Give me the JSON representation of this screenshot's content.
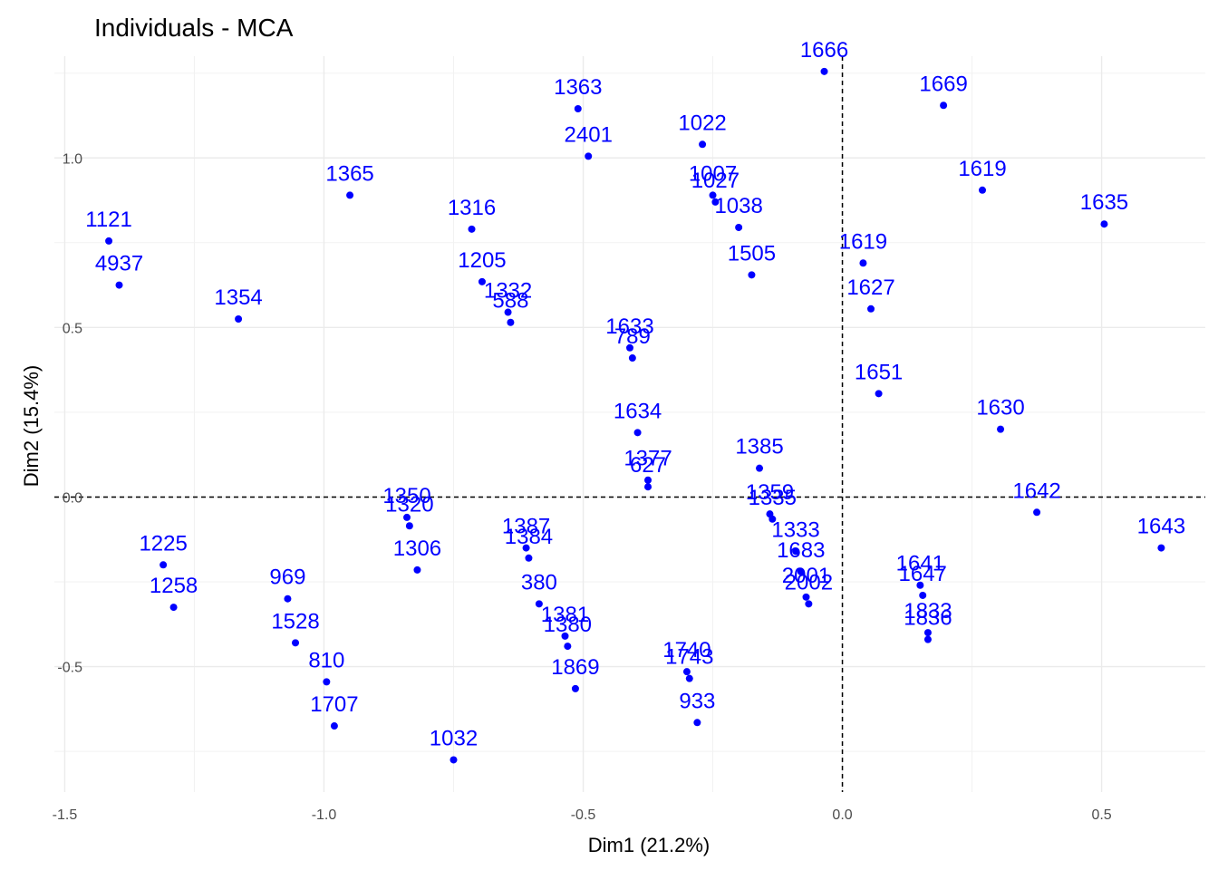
{
  "chart_data": {
    "type": "scatter",
    "title": "Individuals - MCA",
    "xlabel": "Dim1 (21.2%)",
    "ylabel": "Dim2 (15.4%)",
    "xlim": [
      -1.52,
      0.7
    ],
    "ylim": [
      -0.87,
      1.3
    ],
    "xticks": [
      -1.5,
      -1.0,
      -0.5,
      0.0,
      0.5
    ],
    "xtick_labels": [
      "-1.5",
      "-1.0",
      "-0.5",
      "0.0",
      "0.5"
    ],
    "yticks": [
      -0.5,
      0.0,
      0.5,
      1.0
    ],
    "ytick_labels": [
      "-0.5",
      "0.0",
      "0.5",
      "1.0"
    ],
    "grid": true,
    "reference_lines": {
      "x": 0,
      "y": 0,
      "style": "dashed"
    },
    "point_color": "#0000ff",
    "label_color": "#0000ff",
    "overlap_label_color": "#ff00ff",
    "points": [
      {
        "label": "1121",
        "x": -1.415,
        "y": 0.755
      },
      {
        "label": "4937",
        "x": -1.395,
        "y": 0.625
      },
      {
        "label": "1354",
        "x": -1.165,
        "y": 0.525
      },
      {
        "label": "1225",
        "x": -1.31,
        "y": -0.2
      },
      {
        "label": "1258",
        "x": -1.29,
        "y": -0.325
      },
      {
        "label": "969",
        "x": -1.07,
        "y": -0.3
      },
      {
        "label": "1528",
        "x": -1.055,
        "y": -0.43
      },
      {
        "label": "810",
        "x": -0.995,
        "y": -0.545
      },
      {
        "label": "1707",
        "x": -0.98,
        "y": -0.675
      },
      {
        "label": "1365",
        "x": -0.95,
        "y": 0.89
      },
      {
        "label": "1350",
        "x": -0.84,
        "y": -0.06
      },
      {
        "label": "1320",
        "x": -0.835,
        "y": -0.085
      },
      {
        "label": "1306",
        "x": -0.82,
        "y": -0.215
      },
      {
        "label": "1032",
        "x": -0.75,
        "y": -0.775
      },
      {
        "label": "1316",
        "x": -0.715,
        "y": 0.79
      },
      {
        "label": "1205",
        "x": -0.695,
        "y": 0.635
      },
      {
        "label": "1332",
        "x": -0.645,
        "y": 0.545
      },
      {
        "label": "588",
        "x": -0.64,
        "y": 0.515
      },
      {
        "label": "1387",
        "x": -0.61,
        "y": -0.15
      },
      {
        "label": "1384",
        "x": -0.605,
        "y": -0.18
      },
      {
        "label": "380",
        "x": -0.585,
        "y": -0.315
      },
      {
        "label": "1381",
        "x": -0.535,
        "y": -0.41
      },
      {
        "label": "1380",
        "x": -0.53,
        "y": -0.44
      },
      {
        "label": "1869",
        "x": -0.515,
        "y": -0.565
      },
      {
        "label": "1363",
        "x": -0.51,
        "y": 1.145
      },
      {
        "label": "2401",
        "x": -0.49,
        "y": 1.005
      },
      {
        "label": "1633",
        "x": -0.41,
        "y": 0.44
      },
      {
        "label": "789",
        "x": -0.405,
        "y": 0.41
      },
      {
        "label": "1634",
        "x": -0.395,
        "y": 0.19
      },
      {
        "label": "1377",
        "x": -0.375,
        "y": 0.05
      },
      {
        "label": "627",
        "x": -0.375,
        "y": 0.03
      },
      {
        "label": "1740",
        "x": -0.3,
        "y": -0.515
      },
      {
        "label": "1743",
        "x": -0.295,
        "y": -0.535
      },
      {
        "label": "933",
        "x": -0.28,
        "y": -0.665
      },
      {
        "label": "1022",
        "x": -0.27,
        "y": 1.04
      },
      {
        "label": "1007",
        "x": -0.25,
        "y": 0.89
      },
      {
        "label": "1027",
        "x": -0.245,
        "y": 0.87
      },
      {
        "label": "1038",
        "x": -0.2,
        "y": 0.795
      },
      {
        "label": "1505",
        "x": -0.175,
        "y": 0.655
      },
      {
        "label": "1385",
        "x": -0.16,
        "y": 0.085
      },
      {
        "label": "1359",
        "x": -0.14,
        "y": -0.05
      },
      {
        "label": "1335",
        "x": -0.135,
        "y": -0.065
      },
      {
        "label": "1333",
        "x": -0.09,
        "y": -0.16
      },
      {
        "label": "1683",
        "x": -0.08,
        "y": -0.22
      },
      {
        "label": "2001",
        "x": -0.07,
        "y": -0.295
      },
      {
        "label": "2002",
        "x": -0.065,
        "y": -0.315
      },
      {
        "label": "1666",
        "x": -0.035,
        "y": 1.255
      },
      {
        "label": "1619",
        "x": 0.04,
        "y": 0.69
      },
      {
        "label": "1627",
        "x": 0.055,
        "y": 0.555
      },
      {
        "label": "1651",
        "x": 0.07,
        "y": 0.305
      },
      {
        "label": "1641",
        "x": 0.15,
        "y": -0.26
      },
      {
        "label": "1647",
        "x": 0.155,
        "y": -0.29
      },
      {
        "label": "1833",
        "x": 0.165,
        "y": -0.4
      },
      {
        "label": "1836",
        "x": 0.165,
        "y": -0.42
      },
      {
        "label": "1669",
        "x": 0.195,
        "y": 1.155
      },
      {
        "label": "1619",
        "x": 0.27,
        "y": 0.905
      },
      {
        "label": "1630",
        "x": 0.305,
        "y": 0.2
      },
      {
        "label": "1642",
        "x": 0.375,
        "y": -0.045
      },
      {
        "label": "1635",
        "x": 0.505,
        "y": 0.805
      },
      {
        "label": "1643",
        "x": 0.615,
        "y": -0.15
      }
    ]
  }
}
